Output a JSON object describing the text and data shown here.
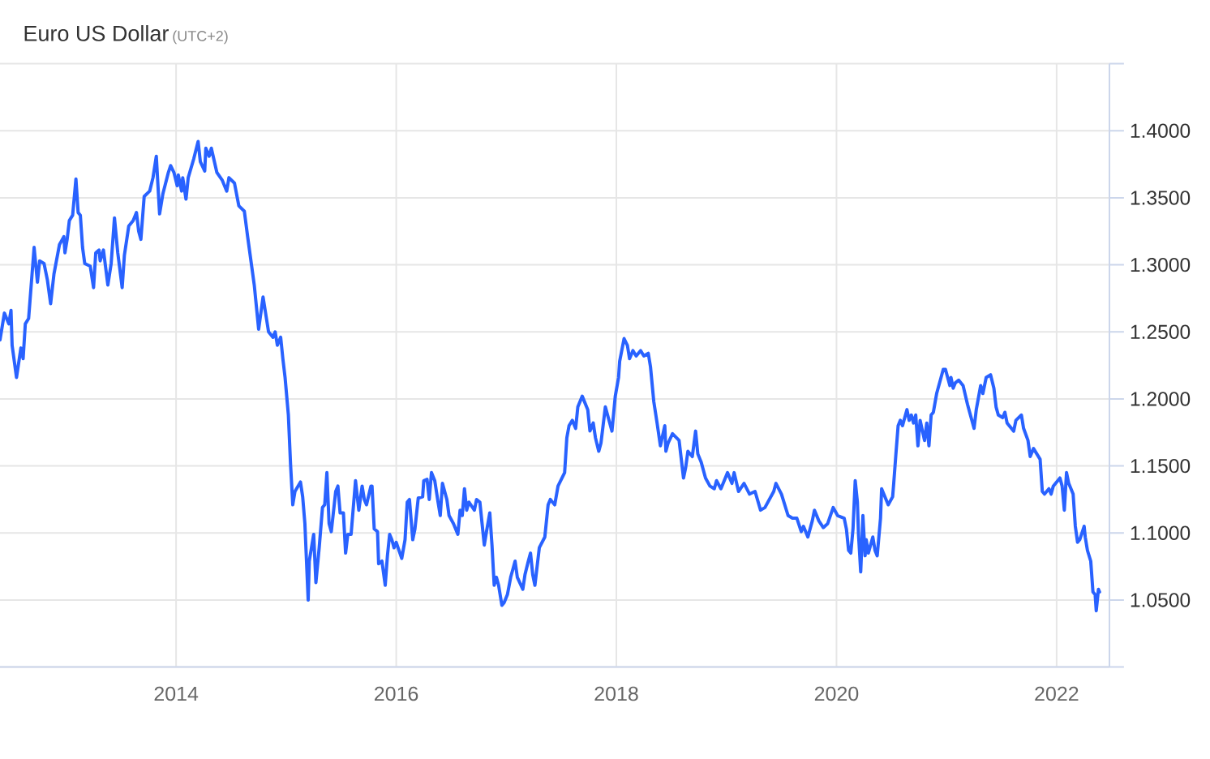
{
  "chart_data": {
    "type": "line",
    "title": "Euro US Dollar",
    "subtitle": "(UTC+2)",
    "color": "#2962ff",
    "grid": true,
    "xlim": [
      2012.4,
      2022.48
    ],
    "ylim": [
      1.0,
      1.45
    ],
    "xticks": [
      2014,
      2016,
      2018,
      2020,
      2022
    ],
    "yticks": [
      {
        "value": 1.0,
        "label": null
      },
      {
        "value": 1.05,
        "label": "1.0500"
      },
      {
        "value": 1.1,
        "label": "1.1000"
      },
      {
        "value": 1.15,
        "label": "1.1500"
      },
      {
        "value": 1.2,
        "label": "1.2000"
      },
      {
        "value": 1.25,
        "label": "1.2500"
      },
      {
        "value": 1.3,
        "label": "1.3000"
      },
      {
        "value": 1.35,
        "label": "1.3500"
      },
      {
        "value": 1.4,
        "label": "1.4000"
      },
      {
        "value": 1.45,
        "label": null
      }
    ],
    "x": [
      2012.4,
      2012.44,
      2012.48,
      2012.5,
      2012.51,
      2012.55,
      2012.59,
      2012.61,
      2012.63,
      2012.66,
      2012.71,
      2012.74,
      2012.76,
      2012.8,
      2012.83,
      2012.86,
      2012.89,
      2012.94,
      2012.98,
      2012.99,
      2013.01,
      2013.03,
      2013.06,
      2013.09,
      2013.11,
      2013.13,
      2013.15,
      2013.17,
      2013.22,
      2013.25,
      2013.27,
      2013.3,
      2013.31,
      2013.34,
      2013.38,
      2013.41,
      2013.44,
      2013.47,
      2013.51,
      2013.53,
      2013.57,
      2013.61,
      2013.64,
      2013.66,
      2013.68,
      2013.71,
      2013.76,
      2013.79,
      2013.82,
      2013.85,
      2013.88,
      2013.93,
      2013.95,
      2013.98,
      2014.01,
      2014.02,
      2014.05,
      2014.06,
      2014.09,
      2014.11,
      2014.16,
      2014.2,
      2014.22,
      2014.26,
      2014.27,
      2014.3,
      2014.32,
      2014.37,
      2014.42,
      2014.46,
      2014.48,
      2014.53,
      2014.57,
      2014.62,
      2014.65,
      2014.71,
      2014.75,
      2014.79,
      2014.84,
      2014.88,
      2014.9,
      2014.92,
      2014.95,
      2014.97,
      2014.99,
      2015.02,
      2015.04,
      2015.06,
      2015.08,
      2015.13,
      2015.15,
      2015.17,
      2015.2,
      2015.21,
      2015.25,
      2015.27,
      2015.3,
      2015.33,
      2015.35,
      2015.37,
      2015.39,
      2015.41,
      2015.45,
      2015.47,
      2015.49,
      2015.52,
      2015.54,
      2015.56,
      2015.59,
      2015.63,
      2015.66,
      2015.69,
      2015.71,
      2015.73,
      2015.77,
      2015.78,
      2015.8,
      2015.83,
      2015.84,
      2015.87,
      2015.9,
      2015.92,
      2015.94,
      2015.96,
      2015.98,
      2016.0,
      2016.05,
      2016.08,
      2016.1,
      2016.12,
      2016.15,
      2016.17,
      2016.2,
      2016.24,
      2016.25,
      2016.28,
      2016.3,
      2016.32,
      2016.35,
      2016.38,
      2016.4,
      2016.42,
      2016.46,
      2016.48,
      2016.52,
      2016.56,
      2016.58,
      2016.6,
      2016.62,
      2016.64,
      2016.66,
      2016.71,
      2016.73,
      2016.76,
      2016.78,
      2016.8,
      2016.82,
      2016.85,
      2016.87,
      2016.89,
      2016.91,
      2016.93,
      2016.96,
      2016.98,
      2017.01,
      2017.04,
      2017.06,
      2017.08,
      2017.1,
      2017.15,
      2017.17,
      2017.2,
      2017.22,
      2017.24,
      2017.26,
      2017.3,
      2017.35,
      2017.38,
      2017.4,
      2017.44,
      2017.47,
      2017.53,
      2017.55,
      2017.57,
      2017.6,
      2017.63,
      2017.65,
      2017.69,
      2017.74,
      2017.76,
      2017.79,
      2017.81,
      2017.84,
      2017.86,
      2017.9,
      2017.92,
      2017.96,
      2017.99,
      2018.02,
      2018.03,
      2018.07,
      2018.1,
      2018.12,
      2018.15,
      2018.18,
      2018.22,
      2018.25,
      2018.29,
      2018.31,
      2018.34,
      2018.37,
      2018.4,
      2018.44,
      2018.45,
      2018.47,
      2018.51,
      2018.57,
      2018.61,
      2018.63,
      2018.65,
      2018.69,
      2018.72,
      2018.74,
      2018.77,
      2018.81,
      2018.85,
      2018.89,
      2018.91,
      2018.95,
      2019.01,
      2019.05,
      2019.07,
      2019.11,
      2019.16,
      2019.21,
      2019.26,
      2019.31,
      2019.35,
      2019.43,
      2019.45,
      2019.5,
      2019.56,
      2019.6,
      2019.64,
      2019.68,
      2019.7,
      2019.74,
      2019.78,
      2019.8,
      2019.84,
      2019.88,
      2019.92,
      2019.97,
      2020.01,
      2020.07,
      2020.09,
      2020.11,
      2020.13,
      2020.15,
      2020.17,
      2020.19,
      2020.2,
      2020.22,
      2020.23,
      2020.24,
      2020.26,
      2020.27,
      2020.29,
      2020.33,
      2020.35,
      2020.37,
      2020.4,
      2020.41,
      2020.47,
      2020.51,
      2020.52,
      2020.54,
      2020.56,
      2020.58,
      2020.6,
      2020.64,
      2020.66,
      2020.68,
      2020.7,
      2020.72,
      2020.74,
      2020.76,
      2020.8,
      2020.82,
      2020.84,
      2020.86,
      2020.88,
      2020.91,
      2020.95,
      2020.97,
      2020.99,
      2021.01,
      2021.03,
      2021.04,
      2021.06,
      2021.08,
      2021.11,
      2021.15,
      2021.19,
      2021.25,
      2021.27,
      2021.31,
      2021.33,
      2021.36,
      2021.4,
      2021.43,
      2021.45,
      2021.47,
      2021.51,
      2021.53,
      2021.55,
      2021.61,
      2021.63,
      2021.68,
      2021.7,
      2021.74,
      2021.76,
      2021.79,
      2021.85,
      2021.87,
      2021.89,
      2021.93,
      2021.95,
      2021.97,
      2022.03,
      2022.05,
      2022.07,
      2022.09,
      2022.11,
      2022.15,
      2022.17,
      2022.19,
      2022.21,
      2022.25,
      2022.26,
      2022.28,
      2022.31,
      2022.33,
      2022.35,
      2022.36,
      2022.38,
      2022.39
    ],
    "values": [
      1.244,
      1.264,
      1.256,
      1.266,
      1.24,
      1.216,
      1.238,
      1.23,
      1.256,
      1.26,
      1.313,
      1.287,
      1.303,
      1.301,
      1.289,
      1.271,
      1.293,
      1.315,
      1.321,
      1.309,
      1.319,
      1.333,
      1.337,
      1.364,
      1.339,
      1.337,
      1.313,
      1.301,
      1.299,
      1.283,
      1.309,
      1.311,
      1.303,
      1.311,
      1.285,
      1.301,
      1.335,
      1.309,
      1.283,
      1.307,
      1.329,
      1.333,
      1.339,
      1.325,
      1.319,
      1.351,
      1.355,
      1.365,
      1.381,
      1.338,
      1.353,
      1.369,
      1.374,
      1.369,
      1.359,
      1.367,
      1.355,
      1.365,
      1.349,
      1.365,
      1.379,
      1.392,
      1.377,
      1.37,
      1.387,
      1.381,
      1.387,
      1.369,
      1.363,
      1.355,
      1.365,
      1.361,
      1.344,
      1.34,
      1.321,
      1.285,
      1.252,
      1.276,
      1.25,
      1.246,
      1.25,
      1.24,
      1.246,
      1.23,
      1.216,
      1.188,
      1.151,
      1.121,
      1.131,
      1.138,
      1.127,
      1.107,
      1.05,
      1.079,
      1.099,
      1.063,
      1.089,
      1.119,
      1.121,
      1.145,
      1.107,
      1.101,
      1.131,
      1.135,
      1.115,
      1.115,
      1.085,
      1.099,
      1.099,
      1.139,
      1.117,
      1.135,
      1.125,
      1.121,
      1.135,
      1.135,
      1.103,
      1.101,
      1.077,
      1.079,
      1.061,
      1.083,
      1.099,
      1.095,
      1.089,
      1.093,
      1.081,
      1.095,
      1.123,
      1.125,
      1.095,
      1.103,
      1.126,
      1.127,
      1.139,
      1.14,
      1.125,
      1.145,
      1.139,
      1.123,
      1.113,
      1.137,
      1.125,
      1.113,
      1.107,
      1.099,
      1.117,
      1.113,
      1.133,
      1.117,
      1.123,
      1.117,
      1.125,
      1.123,
      1.107,
      1.091,
      1.101,
      1.115,
      1.091,
      1.061,
      1.067,
      1.061,
      1.046,
      1.048,
      1.054,
      1.067,
      1.073,
      1.079,
      1.067,
      1.058,
      1.069,
      1.079,
      1.085,
      1.069,
      1.061,
      1.089,
      1.097,
      1.121,
      1.125,
      1.121,
      1.135,
      1.145,
      1.171,
      1.18,
      1.184,
      1.178,
      1.194,
      1.202,
      1.192,
      1.176,
      1.182,
      1.171,
      1.161,
      1.167,
      1.194,
      1.188,
      1.176,
      1.202,
      1.216,
      1.228,
      1.245,
      1.24,
      1.23,
      1.236,
      1.232,
      1.236,
      1.232,
      1.234,
      1.224,
      1.198,
      1.182,
      1.165,
      1.18,
      1.161,
      1.167,
      1.174,
      1.169,
      1.141,
      1.149,
      1.161,
      1.157,
      1.176,
      1.159,
      1.153,
      1.141,
      1.135,
      1.133,
      1.139,
      1.133,
      1.145,
      1.137,
      1.145,
      1.131,
      1.137,
      1.129,
      1.131,
      1.117,
      1.119,
      1.131,
      1.137,
      1.129,
      1.113,
      1.111,
      1.111,
      1.101,
      1.105,
      1.097,
      1.109,
      1.117,
      1.109,
      1.104,
      1.107,
      1.119,
      1.113,
      1.111,
      1.103,
      1.087,
      1.085,
      1.103,
      1.139,
      1.123,
      1.099,
      1.071,
      1.091,
      1.113,
      1.083,
      1.095,
      1.085,
      1.097,
      1.087,
      1.083,
      1.111,
      1.133,
      1.121,
      1.127,
      1.137,
      1.159,
      1.18,
      1.184,
      1.18,
      1.192,
      1.184,
      1.188,
      1.182,
      1.188,
      1.165,
      1.184,
      1.169,
      1.182,
      1.165,
      1.188,
      1.19,
      1.204,
      1.216,
      1.222,
      1.222,
      1.216,
      1.21,
      1.216,
      1.208,
      1.212,
      1.214,
      1.21,
      1.196,
      1.178,
      1.192,
      1.21,
      1.204,
      1.216,
      1.218,
      1.208,
      1.194,
      1.188,
      1.186,
      1.19,
      1.182,
      1.176,
      1.184,
      1.188,
      1.178,
      1.169,
      1.157,
      1.163,
      1.155,
      1.131,
      1.129,
      1.133,
      1.129,
      1.135,
      1.141,
      1.135,
      1.117,
      1.145,
      1.137,
      1.129,
      1.105,
      1.093,
      1.095,
      1.105,
      1.097,
      1.087,
      1.079,
      1.056,
      1.054,
      1.042,
      1.058,
      1.056
    ]
  }
}
